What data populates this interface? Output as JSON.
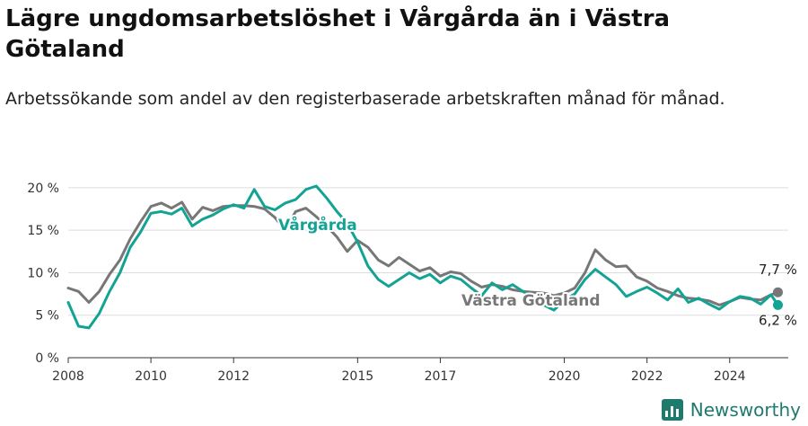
{
  "title": "Lägre ungdomsarbetslöshet i Vårgårda än i Västra Götaland",
  "subtitle": "Arbetssökande som andel av den registerbaserade arbetskraften månad för månad.",
  "brand": {
    "name": "Newsworthy",
    "icon": "newsworthy-logo-icon",
    "color": "#1f7a6e"
  },
  "chart_data": {
    "type": "line",
    "x_range": [
      "2008-01",
      "2025-06"
    ],
    "ylim": [
      0,
      22
    ],
    "y_ticks": [
      0,
      5,
      10,
      15,
      20
    ],
    "y_tick_labels": [
      "0 %",
      "5 %",
      "10 %",
      "15 %",
      "20 %"
    ],
    "x_ticks": [
      2008,
      2010,
      2012,
      2015,
      2017,
      2020,
      2022,
      2024
    ],
    "x_tick_labels": [
      "2008",
      "2010",
      "2012",
      "2015",
      "2017",
      "2020",
      "2022",
      "2024"
    ],
    "grid": true,
    "series": [
      {
        "name": "Vårgårda",
        "color": "#13a394",
        "end_label": "6,2 %",
        "points": [
          [
            "2008-01",
            6.5
          ],
          [
            "2008-04",
            3.7
          ],
          [
            "2008-07",
            3.5
          ],
          [
            "2008-10",
            5.2
          ],
          [
            "2009-01",
            7.8
          ],
          [
            "2009-04",
            10.0
          ],
          [
            "2009-07",
            13.0
          ],
          [
            "2009-10",
            14.8
          ],
          [
            "2010-01",
            17.0
          ],
          [
            "2010-04",
            17.2
          ],
          [
            "2010-07",
            16.9
          ],
          [
            "2010-10",
            17.6
          ],
          [
            "2011-01",
            15.5
          ],
          [
            "2011-04",
            16.3
          ],
          [
            "2011-07",
            16.8
          ],
          [
            "2011-10",
            17.5
          ],
          [
            "2012-01",
            18.0
          ],
          [
            "2012-04",
            17.6
          ],
          [
            "2012-07",
            19.8
          ],
          [
            "2012-10",
            17.8
          ],
          [
            "2013-01",
            17.4
          ],
          [
            "2013-04",
            18.2
          ],
          [
            "2013-07",
            18.6
          ],
          [
            "2013-10",
            19.8
          ],
          [
            "2014-01",
            20.2
          ],
          [
            "2014-04",
            18.8
          ],
          [
            "2014-07",
            17.2
          ],
          [
            "2014-10",
            15.8
          ],
          [
            "2015-01",
            13.6
          ],
          [
            "2015-04",
            10.8
          ],
          [
            "2015-07",
            9.2
          ],
          [
            "2015-10",
            8.4
          ],
          [
            "2016-01",
            9.2
          ],
          [
            "2016-04",
            10.0
          ],
          [
            "2016-07",
            9.3
          ],
          [
            "2016-10",
            9.8
          ],
          [
            "2017-01",
            8.8
          ],
          [
            "2017-04",
            9.6
          ],
          [
            "2017-07",
            9.2
          ],
          [
            "2017-10",
            8.2
          ],
          [
            "2018-01",
            7.3
          ],
          [
            "2018-04",
            8.8
          ],
          [
            "2018-07",
            8.0
          ],
          [
            "2018-10",
            8.6
          ],
          [
            "2019-01",
            7.8
          ],
          [
            "2019-04",
            7.0
          ],
          [
            "2019-07",
            6.2
          ],
          [
            "2019-10",
            5.6
          ],
          [
            "2020-01",
            6.8
          ],
          [
            "2020-04",
            7.5
          ],
          [
            "2020-07",
            9.2
          ],
          [
            "2020-10",
            10.4
          ],
          [
            "2021-01",
            9.5
          ],
          [
            "2021-04",
            8.6
          ],
          [
            "2021-07",
            7.2
          ],
          [
            "2021-10",
            7.8
          ],
          [
            "2022-01",
            8.3
          ],
          [
            "2022-04",
            7.6
          ],
          [
            "2022-07",
            6.8
          ],
          [
            "2022-10",
            8.1
          ],
          [
            "2023-01",
            6.5
          ],
          [
            "2023-04",
            7.0
          ],
          [
            "2023-07",
            6.3
          ],
          [
            "2023-10",
            5.7
          ],
          [
            "2024-01",
            6.6
          ],
          [
            "2024-04",
            7.2
          ],
          [
            "2024-07",
            7.0
          ],
          [
            "2024-10",
            6.3
          ],
          [
            "2025-01",
            7.4
          ],
          [
            "2025-03",
            6.2
          ]
        ]
      },
      {
        "name": "Västra Götaland",
        "color": "#777777",
        "end_label": "7,7 %",
        "points": [
          [
            "2008-01",
            8.2
          ],
          [
            "2008-04",
            7.8
          ],
          [
            "2008-07",
            6.5
          ],
          [
            "2008-10",
            7.8
          ],
          [
            "2009-01",
            9.8
          ],
          [
            "2009-04",
            11.5
          ],
          [
            "2009-07",
            14.0
          ],
          [
            "2009-10",
            16.0
          ],
          [
            "2010-01",
            17.8
          ],
          [
            "2010-04",
            18.2
          ],
          [
            "2010-07",
            17.6
          ],
          [
            "2010-10",
            18.3
          ],
          [
            "2011-01",
            16.3
          ],
          [
            "2011-04",
            17.7
          ],
          [
            "2011-07",
            17.3
          ],
          [
            "2011-10",
            17.8
          ],
          [
            "2012-01",
            17.9
          ],
          [
            "2012-04",
            17.9
          ],
          [
            "2012-07",
            17.8
          ],
          [
            "2012-10",
            17.5
          ],
          [
            "2013-01",
            16.5
          ],
          [
            "2013-04",
            15.0
          ],
          [
            "2013-07",
            17.2
          ],
          [
            "2013-10",
            17.6
          ],
          [
            "2014-01",
            16.6
          ],
          [
            "2014-04",
            15.5
          ],
          [
            "2014-07",
            14.2
          ],
          [
            "2014-10",
            12.5
          ],
          [
            "2015-01",
            13.8
          ],
          [
            "2015-04",
            13.0
          ],
          [
            "2015-07",
            11.5
          ],
          [
            "2015-10",
            10.8
          ],
          [
            "2016-01",
            11.8
          ],
          [
            "2016-04",
            11.0
          ],
          [
            "2016-07",
            10.2
          ],
          [
            "2016-10",
            10.6
          ],
          [
            "2017-01",
            9.6
          ],
          [
            "2017-04",
            10.1
          ],
          [
            "2017-07",
            9.9
          ],
          [
            "2017-10",
            9.0
          ],
          [
            "2018-01",
            8.3
          ],
          [
            "2018-04",
            8.6
          ],
          [
            "2018-07",
            8.4
          ],
          [
            "2018-10",
            8.0
          ],
          [
            "2019-01",
            7.8
          ],
          [
            "2019-04",
            7.7
          ],
          [
            "2019-07",
            7.6
          ],
          [
            "2019-10",
            7.3
          ],
          [
            "2020-01",
            7.6
          ],
          [
            "2020-04",
            8.2
          ],
          [
            "2020-07",
            10.0
          ],
          [
            "2020-10",
            12.7
          ],
          [
            "2021-01",
            11.5
          ],
          [
            "2021-04",
            10.7
          ],
          [
            "2021-07",
            10.8
          ],
          [
            "2021-10",
            9.5
          ],
          [
            "2022-01",
            9.0
          ],
          [
            "2022-04",
            8.2
          ],
          [
            "2022-07",
            7.8
          ],
          [
            "2022-10",
            7.3
          ],
          [
            "2023-01",
            7.0
          ],
          [
            "2023-04",
            6.9
          ],
          [
            "2023-07",
            6.7
          ],
          [
            "2023-10",
            6.2
          ],
          [
            "2024-01",
            6.6
          ],
          [
            "2024-04",
            7.1
          ],
          [
            "2024-07",
            6.9
          ],
          [
            "2024-10",
            6.8
          ],
          [
            "2025-01",
            7.4
          ],
          [
            "2025-03",
            7.7
          ]
        ]
      }
    ]
  }
}
